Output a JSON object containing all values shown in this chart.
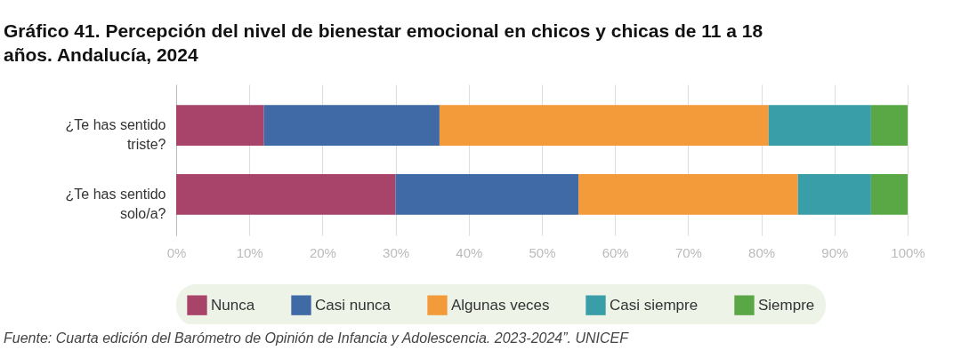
{
  "chart_data": {
    "type": "bar",
    "orientation": "horizontal",
    "stacked": true,
    "title": [
      "Gráfico 41. Percepción del nivel de bienestar emocional en chicos y chicas de 11 a 18",
      "años. Andalucía, 2024"
    ],
    "categories": [
      "¿Te has sentido triste?",
      "¿Te has sentido solo/a?"
    ],
    "series": [
      {
        "name": "Nunca",
        "color": "#a8436a",
        "values": [
          12,
          30
        ]
      },
      {
        "name": "Casi nunca",
        "color": "#3f6aa5",
        "values": [
          24,
          25
        ]
      },
      {
        "name": "Algunas veces",
        "color": "#f39a3a",
        "values": [
          45,
          30
        ]
      },
      {
        "name": "Casi siempre",
        "color": "#3a9ea8",
        "values": [
          14,
          10
        ]
      },
      {
        "name": "Siempre",
        "color": "#5aa845",
        "values": [
          5,
          5
        ]
      }
    ],
    "xlim": [
      0,
      100
    ],
    "xticks": [
      {
        "value": 0,
        "label": "0%"
      },
      {
        "value": 10,
        "label": "10%"
      },
      {
        "value": 20,
        "label": "20%"
      },
      {
        "value": 30,
        "label": "30%"
      },
      {
        "value": 40,
        "label": "40%"
      },
      {
        "value": 50,
        "label": "50%"
      },
      {
        "value": 60,
        "label": "60%"
      },
      {
        "value": 70,
        "label": "70%"
      },
      {
        "value": 80,
        "label": "80%"
      },
      {
        "value": 90,
        "label": "90%"
      },
      {
        "value": 100,
        "label": "100%"
      }
    ],
    "grid": "x",
    "legend": "bottom",
    "annotations": [
      "Fuente: Cuarta edición del Barómetro de Opinión de Infancia y Adolescencia. 2023-2024”. UNICEF"
    ]
  }
}
